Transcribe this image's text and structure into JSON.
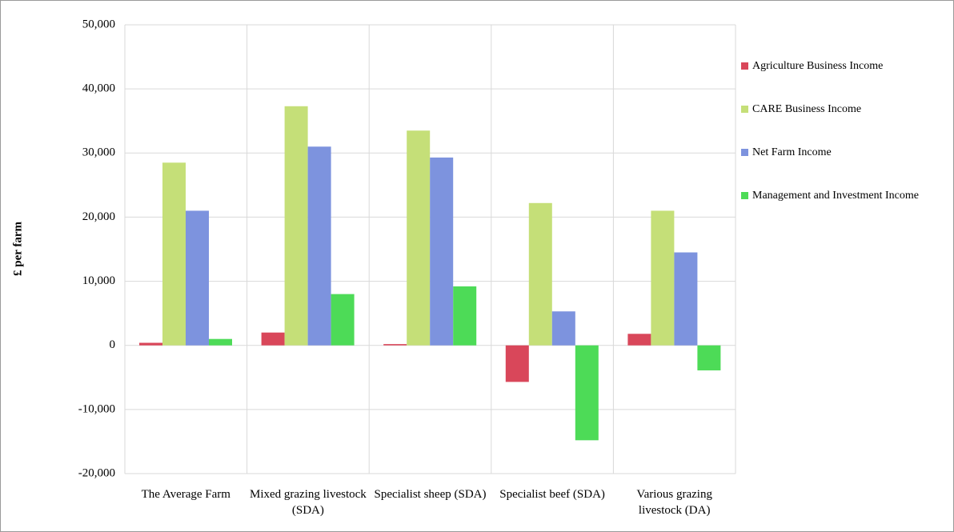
{
  "chart_data": {
    "type": "bar",
    "y_label": "£ per farm",
    "categories": [
      "The Average Farm",
      "Mixed grazing livestock (SDA)",
      "Specialist sheep (SDA)",
      "Specialist beef (SDA)",
      "Various grazing livestock (DA)"
    ],
    "series": [
      {
        "name": "Agriculture Business Income",
        "color": "#d9475a",
        "values": [
          400,
          2000,
          200,
          -5700,
          1800
        ]
      },
      {
        "name": "CARE Business Income",
        "color": "#c5df78",
        "values": [
          28500,
          37300,
          33500,
          22200,
          21000
        ]
      },
      {
        "name": "Net Farm Income",
        "color": "#7d93de",
        "values": [
          21000,
          31000,
          29300,
          5300,
          14500
        ]
      },
      {
        "name": "Management and Investment Income",
        "color": "#4ddb57",
        "values": [
          1000,
          8000,
          9200,
          -14800,
          -3900
        ]
      }
    ],
    "ylim": [
      -20000,
      50000
    ],
    "yticks": [
      {
        "value": -20000,
        "label": "-20,000"
      },
      {
        "value": -10000,
        "label": "-10,000"
      },
      0,
      {
        "value": 10000,
        "label": "10,000"
      },
      {
        "value": 20000,
        "label": "20,000"
      },
      {
        "value": 30000,
        "label": "30,000"
      },
      {
        "value": 40000,
        "label": "40,000"
      },
      {
        "value": 50000,
        "label": "50,000"
      }
    ],
    "grid": true
  }
}
